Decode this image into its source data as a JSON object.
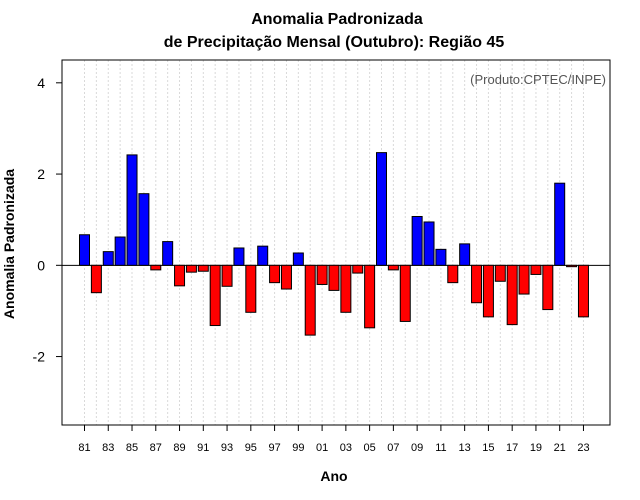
{
  "chart_data": {
    "type": "bar",
    "title_line1": "Anomalia Padronizada",
    "title_line2": "de Precipitação Mensal (Outubro): Região 45",
    "credit": "(Produto:CPTEC/INPE)",
    "xlabel": "Ano",
    "ylabel": "Anomalia Padronizada",
    "ylim": [
      -3.5,
      4.5
    ],
    "yticks": [
      -2,
      0,
      2,
      4
    ],
    "ytick_labels": [
      "-2",
      "0",
      "2",
      "4"
    ],
    "positive_color": "#0000ff",
    "negative_color": "#ff0000",
    "categories": [
      "81",
      "82",
      "83",
      "84",
      "85",
      "86",
      "87",
      "88",
      "89",
      "90",
      "91",
      "92",
      "93",
      "94",
      "95",
      "96",
      "97",
      "98",
      "99",
      "00",
      "01",
      "02",
      "03",
      "04",
      "05",
      "06",
      "07",
      "08",
      "09",
      "10",
      "11",
      "12",
      "13",
      "14",
      "15",
      "16",
      "17",
      "18",
      "19",
      "20",
      "21",
      "22",
      "23"
    ],
    "x_tick_labels": [
      "81",
      "83",
      "85",
      "87",
      "89",
      "91",
      "93",
      "95",
      "97",
      "99",
      "01",
      "03",
      "05",
      "07",
      "09",
      "11",
      "13",
      "15",
      "17",
      "19",
      "21",
      "23"
    ],
    "values": [
      0.67,
      -0.6,
      0.3,
      0.62,
      2.42,
      1.57,
      -0.1,
      0.52,
      -0.45,
      -0.15,
      -0.13,
      -1.32,
      -0.46,
      0.38,
      -1.03,
      0.42,
      -0.38,
      -0.52,
      0.27,
      -1.53,
      -0.42,
      -0.55,
      -1.03,
      -0.17,
      -1.37,
      2.47,
      -0.1,
      -1.23,
      1.07,
      0.95,
      0.35,
      -0.38,
      0.47,
      -0.82,
      -1.13,
      -0.35,
      -1.3,
      -0.63,
      -0.2,
      -0.97,
      1.8,
      -0.03,
      -1.13
    ]
  }
}
